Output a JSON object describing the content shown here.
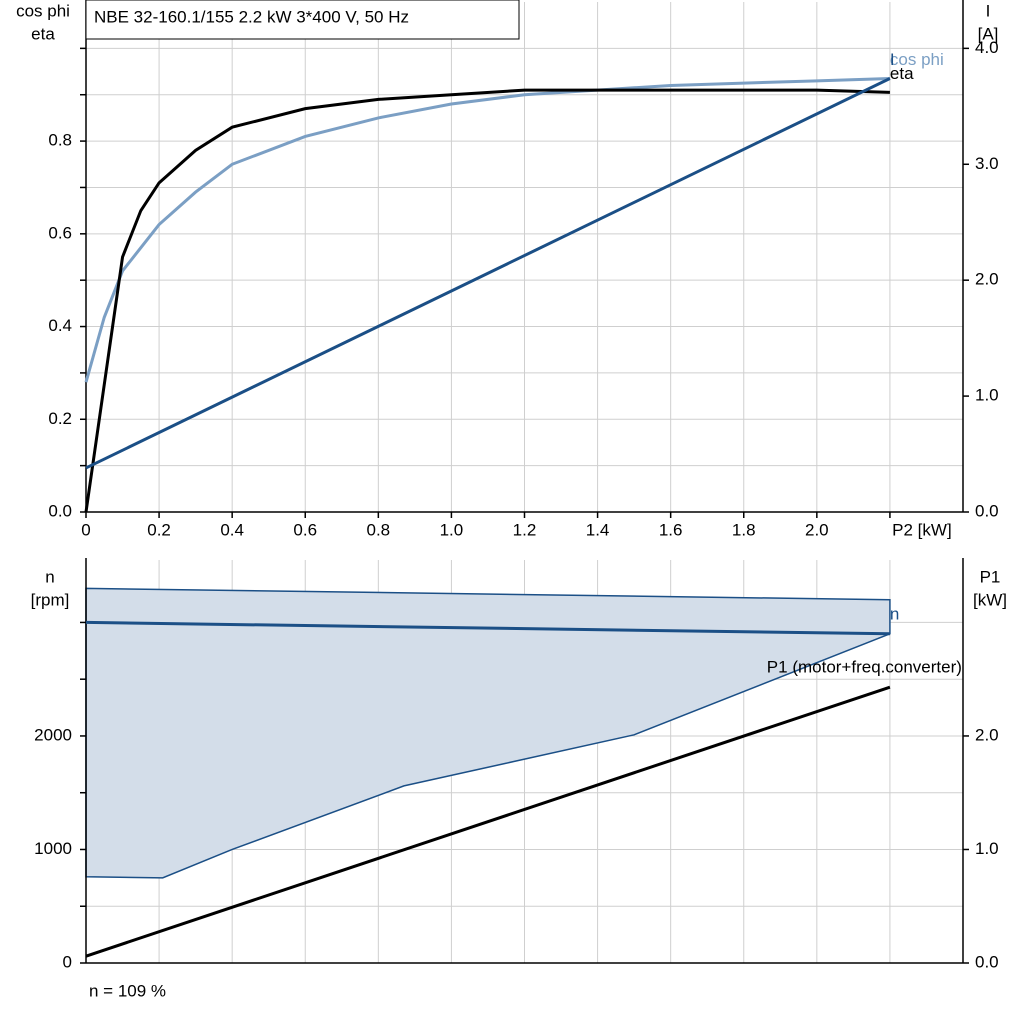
{
  "chart_data": [
    {
      "type": "line",
      "title": "NBE 32-160.1/155   2.2 kW   3*400 V, 50 Hz",
      "y_label": [
        "cos phi",
        "eta"
      ],
      "y2_label": [
        "I",
        "[A]"
      ],
      "xlim": [
        0,
        2.4
      ],
      "xticks": [
        {
          "value": 0,
          "label": "0"
        },
        0.2,
        0.4,
        0.6,
        0.8,
        {
          "value": 1.0,
          "label": "1.0"
        },
        1.2,
        1.4,
        1.6,
        1.8,
        {
          "value": 2.0,
          "label": "2.0"
        },
        {
          "value": 2.2,
          "label": "P2 [kW]"
        }
      ],
      "ylim": [
        0,
        1.1
      ],
      "yticks": [
        {
          "value": 0,
          "label": "0.0"
        },
        0.2,
        0.4,
        0.6,
        0.8
      ],
      "minor_yticks": [
        0.1,
        0.3,
        0.5,
        0.7,
        0.9,
        1.0
      ],
      "y2lim": [
        0,
        4.4
      ],
      "y2ticks": [
        {
          "value": 0,
          "label": "0.0"
        },
        {
          "value": 1,
          "label": "1.0"
        },
        {
          "value": 2,
          "label": "2.0"
        },
        {
          "value": 3,
          "label": "3.0"
        },
        {
          "value": 4,
          "label": "4.0"
        }
      ],
      "grid": true,
      "series": [
        {
          "name": "cos phi",
          "color": "#7b9fc4",
          "x": [
            0,
            0.05,
            0.1,
            0.2,
            0.3,
            0.4,
            0.6,
            0.8,
            1.0,
            1.2,
            1.6,
            2.0,
            2.2
          ],
          "values": [
            0.28,
            0.42,
            0.52,
            0.62,
            0.69,
            0.75,
            0.81,
            0.85,
            0.88,
            0.9,
            0.92,
            0.93,
            0.935
          ]
        },
        {
          "name": "eta",
          "color": "#000000",
          "x": [
            0,
            0.1,
            0.15,
            0.2,
            0.3,
            0.4,
            0.6,
            0.8,
            1.0,
            1.2,
            1.6,
            2.0,
            2.2
          ],
          "values": [
            0,
            0.55,
            0.65,
            0.71,
            0.78,
            0.83,
            0.87,
            0.89,
            0.9,
            0.91,
            0.91,
            0.91,
            0.905
          ]
        },
        {
          "name": "I",
          "color": "#1b4f86",
          "axis": "y2",
          "x": [
            0,
            2.2
          ],
          "values": [
            0.38,
            3.74
          ]
        }
      ]
    },
    {
      "type": "line",
      "y_label": [
        "n",
        "[rpm]"
      ],
      "y2_label": [
        "P1",
        "[kW]"
      ],
      "xlim": [
        0,
        2.4
      ],
      "minor_xticks": [
        0,
        0.2,
        0.4,
        0.6,
        0.8,
        1.0,
        1.2,
        1.4,
        1.6,
        1.8,
        2.0,
        2.2
      ],
      "ylim": [
        0,
        3550
      ],
      "yticks": [
        0,
        1000,
        2000
      ],
      "minor_yticks": [
        500,
        1500,
        2500,
        3000
      ],
      "y2lim": [
        0,
        3.55
      ],
      "y2ticks": [
        {
          "value": 0,
          "label": "0.0"
        },
        {
          "value": 1,
          "label": "1.0"
        },
        {
          "value": 2,
          "label": "2.0"
        }
      ],
      "grid": true,
      "range": {
        "color": "#d3dde9",
        "upper": {
          "x": [
            0,
            2.2
          ],
          "values": [
            3300,
            3200
          ]
        },
        "lower": {
          "x": [
            0,
            0.21,
            0.4,
            0.87,
            1.5,
            2.2
          ],
          "values": [
            760,
            750,
            1000,
            1560,
            2010,
            2900
          ]
        }
      },
      "series": [
        {
          "name": "n",
          "color": "#1b4f86",
          "x": [
            0,
            2.2
          ],
          "values": [
            3000,
            2900
          ]
        },
        {
          "name": "P1 (motor+freq.converter)",
          "color": "#000000",
          "axis": "y2",
          "x": [
            0,
            2.2
          ],
          "values": [
            0.06,
            2.43
          ]
        }
      ],
      "note": "n = 109 %"
    }
  ]
}
